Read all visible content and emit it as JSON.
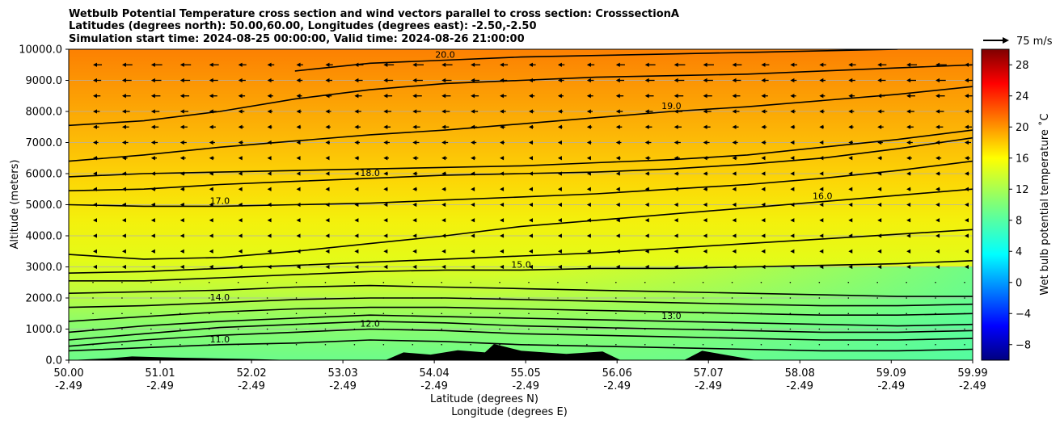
{
  "chart_data": {
    "type": "contour",
    "title_lines": [
      "Wetbulb Potential Temperature cross section and wind vectors parallel to cross section: CrosssectionA",
      "Latitudes (degrees north): 50.00,60.00, Longitudes (degrees east): -2.50,-2.50",
      "Simulation start time: 2024-08-25 00:00:00, Valid time: 2024-08-26 21:00:00"
    ],
    "ylabel": "Altitude (meters)",
    "xlabel_lines": [
      "Latitude (degrees N)",
      "Longitude (degrees E)"
    ],
    "ylim": [
      0,
      10000
    ],
    "xlim": [
      50.0,
      59.99
    ],
    "yticks": [
      "0.0",
      "1000.0",
      "2000.0",
      "3000.0",
      "4000.0",
      "5000.0",
      "6000.0",
      "7000.0",
      "8000.0",
      "9000.0",
      "10000.0"
    ],
    "xticks": [
      {
        "lat": "50.00",
        "lon": "-2.49"
      },
      {
        "lat": "51.01",
        "lon": "-2.49"
      },
      {
        "lat": "52.02",
        "lon": "-2.49"
      },
      {
        "lat": "53.03",
        "lon": "-2.49"
      },
      {
        "lat": "54.04",
        "lon": "-2.49"
      },
      {
        "lat": "55.05",
        "lon": "-2.49"
      },
      {
        "lat": "56.06",
        "lon": "-2.49"
      },
      {
        "lat": "57.07",
        "lon": "-2.49"
      },
      {
        "lat": "58.08",
        "lon": "-2.49"
      },
      {
        "lat": "59.09",
        "lon": "-2.49"
      },
      {
        "lat": "59.99",
        "lon": "-2.49"
      }
    ],
    "grid": "horizontal",
    "quiver_key": "75 m/s",
    "colorbar": {
      "label": "Wet bulb potential temperature ˚C",
      "ticks": [
        "−8",
        "−4",
        "0",
        "4",
        "8",
        "12",
        "16",
        "20",
        "24",
        "28"
      ],
      "range": [
        -10,
        30
      ],
      "colormap": "jet"
    },
    "contours": [
      {
        "level": 11,
        "label": "11.0",
        "y": [
          300,
          400,
          500,
          550,
          650,
          600,
          500,
          450,
          400,
          350,
          300,
          300,
          350
        ]
      },
      {
        "level": 12,
        "label": "12.0",
        "y": [
          450,
          650,
          800,
          900,
          1000,
          950,
          850,
          800,
          750,
          700,
          650,
          650,
          700
        ]
      },
      {
        "level": 12.5,
        "label": "",
        "y": [
          650,
          850,
          1050,
          1150,
          1250,
          1200,
          1100,
          1050,
          1000,
          950,
          900,
          900,
          950
        ]
      },
      {
        "level": 13,
        "label": "13.0",
        "y": [
          900,
          1100,
          1250,
          1350,
          1450,
          1400,
          1350,
          1300,
          1250,
          1200,
          1150,
          1100,
          1150
        ]
      },
      {
        "level": 13.5,
        "label": "",
        "y": [
          1250,
          1400,
          1550,
          1650,
          1700,
          1700,
          1650,
          1600,
          1550,
          1500,
          1450,
          1450,
          1500
        ]
      },
      {
        "level": 14,
        "label": "14.0",
        "y": [
          1700,
          1750,
          1850,
          1950,
          2000,
          2000,
          1950,
          1900,
          1850,
          1800,
          1750,
          1750,
          1800
        ]
      },
      {
        "level": 14.5,
        "label": "",
        "y": [
          2150,
          2200,
          2250,
          2350,
          2400,
          2350,
          2300,
          2250,
          2200,
          2150,
          2100,
          2050,
          2050
        ]
      },
      {
        "level": 15,
        "label": "15.0",
        "y": [
          2550,
          2550,
          2650,
          2750,
          2850,
          2900,
          2900,
          2950,
          2950,
          3000,
          3050,
          3100,
          3200
        ]
      },
      {
        "level": 15.5,
        "label": "",
        "y": [
          2800,
          2850,
          2950,
          3050,
          3150,
          3250,
          3350,
          3450,
          3600,
          3750,
          3900,
          4050,
          4200
        ]
      },
      {
        "level": 16,
        "label": "16.0",
        "y": [
          3400,
          3250,
          3300,
          3500,
          3750,
          4000,
          4300,
          4500,
          4700,
          4900,
          5100,
          5300,
          5500
        ]
      },
      {
        "level": 17,
        "label": "17.0",
        "y": [
          5000,
          4950,
          4950,
          5000,
          5050,
          5150,
          5250,
          5350,
          5500,
          5650,
          5850,
          6100,
          6400
        ]
      },
      {
        "level": 18,
        "label": "18.0",
        "y": [
          5450,
          5500,
          5650,
          5750,
          5850,
          5950,
          6000,
          6050,
          6150,
          6300,
          6500,
          6800,
          7150
        ]
      },
      {
        "level": 18.5,
        "label": "",
        "y": [
          5900,
          6000,
          6050,
          6100,
          6150,
          6200,
          6250,
          6350,
          6450,
          6600,
          6850,
          7100,
          7400
        ]
      },
      {
        "level": 19,
        "label": "19.0",
        "y": [
          6400,
          6600,
          6850,
          7050,
          7250,
          7400,
          7600,
          7800,
          8000,
          8150,
          8350,
          8550,
          8800
        ]
      },
      {
        "level": 19.5,
        "label": "",
        "y": [
          7550,
          7700,
          8000,
          8400,
          8700,
          8900,
          9000,
          9100,
          9150,
          9200,
          9300,
          9400,
          9500
        ]
      },
      {
        "level": 20,
        "label": "20.0",
        "y": [
          null,
          null,
          null,
          9300,
          9550,
          9650,
          9750,
          9800,
          9850,
          9900,
          9950,
          10000,
          null
        ]
      }
    ],
    "contour_x": [
      50.0,
      50.83,
      51.67,
      52.5,
      53.33,
      54.16,
      55.0,
      55.83,
      56.66,
      57.5,
      58.33,
      59.16,
      59.99
    ],
    "terrain": [
      {
        "lat": 50.0,
        "alt": 0
      },
      {
        "lat": 50.45,
        "alt": 60
      },
      {
        "lat": 50.7,
        "alt": 120
      },
      {
        "lat": 51.2,
        "alt": 80
      },
      {
        "lat": 51.6,
        "alt": 60
      },
      {
        "lat": 52.0,
        "alt": 40
      },
      {
        "lat": 52.5,
        "alt": 0
      },
      {
        "lat": 53.5,
        "alt": 0
      },
      {
        "lat": 53.7,
        "alt": 250
      },
      {
        "lat": 54.0,
        "alt": 180
      },
      {
        "lat": 54.3,
        "alt": 320
      },
      {
        "lat": 54.6,
        "alt": 250
      },
      {
        "lat": 54.7,
        "alt": 520
      },
      {
        "lat": 55.0,
        "alt": 300
      },
      {
        "lat": 55.5,
        "alt": 200
      },
      {
        "lat": 55.9,
        "alt": 280
      },
      {
        "lat": 56.1,
        "alt": 0
      },
      {
        "lat": 56.8,
        "alt": 0
      },
      {
        "lat": 57.0,
        "alt": 300
      },
      {
        "lat": 57.3,
        "alt": 150
      },
      {
        "lat": 57.6,
        "alt": 0
      },
      {
        "lat": 59.99,
        "alt": 0
      }
    ]
  }
}
